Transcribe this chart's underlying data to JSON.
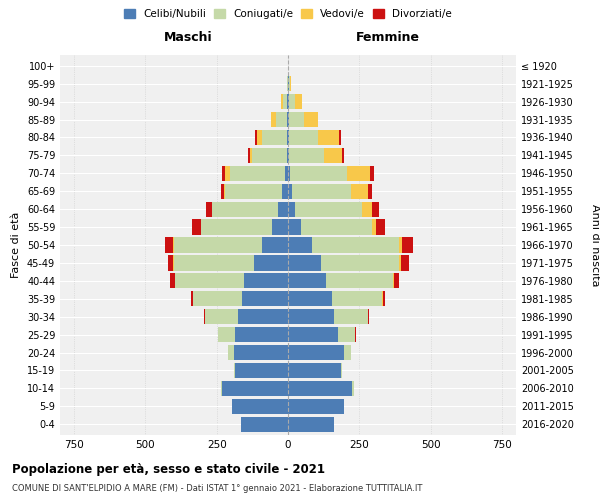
{
  "age_groups": [
    "0-4",
    "5-9",
    "10-14",
    "15-19",
    "20-24",
    "25-29",
    "30-34",
    "35-39",
    "40-44",
    "45-49",
    "50-54",
    "55-59",
    "60-64",
    "65-69",
    "70-74",
    "75-79",
    "80-84",
    "85-89",
    "90-94",
    "95-99",
    "100+"
  ],
  "birth_years": [
    "2016-2020",
    "2011-2015",
    "2006-2010",
    "2001-2005",
    "1996-2000",
    "1991-1995",
    "1986-1990",
    "1981-1985",
    "1976-1980",
    "1971-1975",
    "1966-1970",
    "1961-1965",
    "1956-1960",
    "1951-1955",
    "1946-1950",
    "1941-1945",
    "1936-1940",
    "1931-1935",
    "1926-1930",
    "1921-1925",
    "≤ 1920"
  ],
  "males": {
    "celibi": [
      165,
      195,
      230,
      185,
      190,
      185,
      175,
      160,
      155,
      120,
      90,
      55,
      35,
      20,
      10,
      5,
      5,
      3,
      2,
      1,
      0
    ],
    "coniugati": [
      0,
      0,
      5,
      5,
      20,
      60,
      115,
      175,
      240,
      280,
      310,
      250,
      230,
      200,
      195,
      120,
      85,
      40,
      15,
      3,
      0
    ],
    "vedovi": [
      0,
      0,
      0,
      0,
      0,
      0,
      0,
      0,
      2,
      2,
      3,
      2,
      3,
      5,
      15,
      10,
      20,
      15,
      8,
      1,
      0
    ],
    "divorziati": [
      0,
      0,
      0,
      0,
      0,
      2,
      5,
      5,
      18,
      20,
      30,
      30,
      18,
      10,
      10,
      5,
      5,
      2,
      0,
      0,
      0
    ]
  },
  "females": {
    "nubili": [
      160,
      195,
      225,
      185,
      195,
      175,
      160,
      155,
      135,
      115,
      85,
      45,
      25,
      15,
      8,
      5,
      5,
      5,
      3,
      2,
      0
    ],
    "coniugate": [
      0,
      0,
      5,
      5,
      25,
      60,
      120,
      175,
      235,
      275,
      305,
      250,
      235,
      205,
      200,
      120,
      100,
      50,
      20,
      5,
      0
    ],
    "vedove": [
      0,
      0,
      0,
      0,
      0,
      0,
      0,
      2,
      3,
      5,
      10,
      15,
      35,
      60,
      80,
      65,
      75,
      50,
      25,
      5,
      0
    ],
    "divorziate": [
      0,
      0,
      0,
      0,
      0,
      2,
      5,
      8,
      18,
      28,
      40,
      30,
      25,
      15,
      15,
      5,
      5,
      2,
      0,
      0,
      0
    ]
  },
  "colors": {
    "celibi": "#4d7db5",
    "coniugati": "#c5d9a8",
    "vedovi": "#f8c84a",
    "divorziati": "#cc1111"
  },
  "xlim": 800,
  "xlabel_left": "Maschi",
  "xlabel_right": "Femmine",
  "ylabel": "Fasce di età",
  "ylabel_right": "Anni di nascita",
  "title": "Popolazione per età, sesso e stato civile - 2021",
  "subtitle": "COMUNE DI SANT'ELPIDIO A MARE (FM) - Dati ISTAT 1° gennaio 2021 - Elaborazione TUTTITALIA.IT",
  "legend_labels": [
    "Celibi/Nubili",
    "Coniugati/e",
    "Vedovi/e",
    "Divorziati/e"
  ],
  "bg_color": "#f0f0f0",
  "bar_height": 0.85
}
